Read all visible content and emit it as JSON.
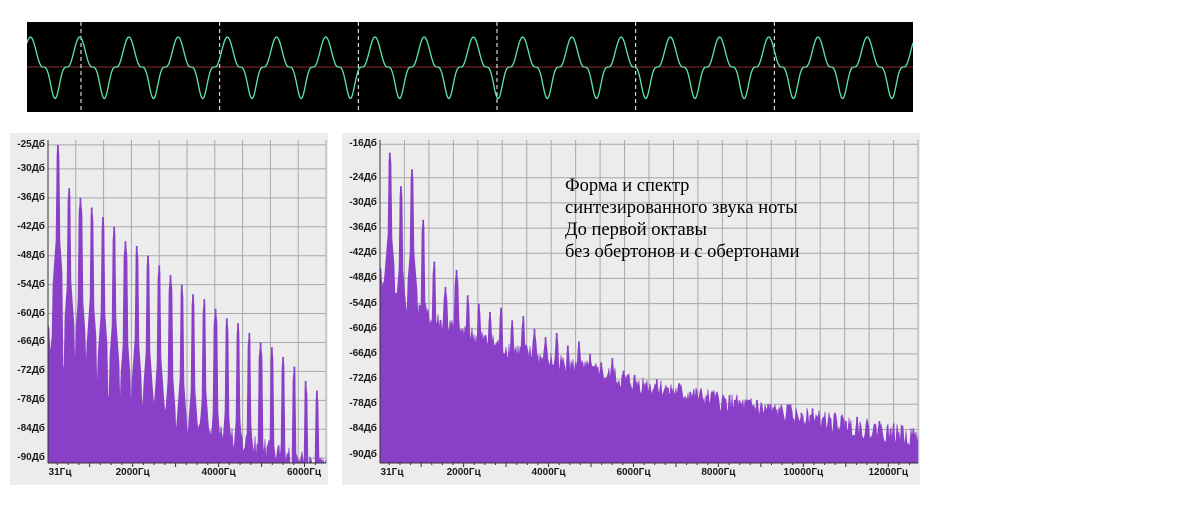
{
  "caption": {
    "lines": [
      "Форма и спектр",
      "синтезированного звука ноты",
      "До первой октавы",
      "без обертонов и с обертонами"
    ]
  },
  "colors": {
    "waveform": "#5ee6a8",
    "waveform_background": "#000000",
    "waveform_markers": "#ffffff",
    "waveform_center": "#8b2a2a",
    "spectrum_fill": "#8a3fc8",
    "plot_background": "#ececec",
    "grid": "#a8a8a8"
  },
  "chart_data": [
    {
      "type": "line",
      "title": "",
      "description_level": "waveform",
      "xlabel": "",
      "ylabel": "",
      "grid": false,
      "periods": 18,
      "marker_count": 6,
      "amplitude": [
        -1,
        1
      ]
    },
    {
      "type": "area",
      "title": "",
      "xlabel": "",
      "ylabel": "",
      "grid": true,
      "x_tick_labels": [
        "31Гц",
        "2000Гц",
        "4000Гц",
        "6000Гц"
      ],
      "x_tick_values": [
        31,
        2000,
        4000,
        6000
      ],
      "xlim": [
        31,
        6500
      ],
      "y_tick_labels": [
        "-25Дб",
        "-30Дб",
        "-36Дб",
        "-42Дб",
        "-48Дб",
        "-54Дб",
        "-60Дб",
        "-66Дб",
        "-72Дб",
        "-78Дб",
        "-84Дб",
        "-90Дб"
      ],
      "y_tick_values": [
        -25,
        -30,
        -36,
        -42,
        -48,
        -54,
        -60,
        -66,
        -72,
        -78,
        -84,
        -90
      ],
      "ylim": [
        -91,
        -24
      ],
      "fundamental_hz": 262,
      "series": [
        {
          "harmonic_peaks_db": [
            -25,
            -34,
            -36,
            -38,
            -40,
            -42,
            -45,
            -46,
            -48,
            -50,
            -52,
            -54,
            -56,
            -57,
            -59,
            -61,
            -62,
            -64,
            -66,
            -67,
            -69,
            -71,
            -74,
            -76,
            -78,
            -80,
            -83,
            -86,
            -88,
            -89
          ]
        }
      ]
    },
    {
      "type": "area",
      "title": "",
      "xlabel": "",
      "ylabel": "",
      "grid": true,
      "x_tick_labels": [
        "31Гц",
        "2000Гц",
        "4000Гц",
        "6000Гц",
        "8000Гц",
        "10000Гц",
        "12000Гц"
      ],
      "x_tick_values": [
        31,
        2000,
        4000,
        6000,
        8000,
        10000,
        12000
      ],
      "xlim": [
        31,
        12700
      ],
      "y_tick_labels": [
        "-16Дб",
        "-24Дб",
        "-30Дб",
        "-36Дб",
        "-42Дб",
        "-48Дб",
        "-54Дб",
        "-60Дб",
        "-66Дб",
        "-72Дб",
        "-78Дб",
        "-84Дб",
        "-90Дб"
      ],
      "y_tick_values": [
        -16,
        -24,
        -30,
        -36,
        -42,
        -48,
        -54,
        -60,
        -66,
        -72,
        -78,
        -84,
        -90
      ],
      "ylim": [
        -92,
        -15
      ],
      "fundamental_hz": 262,
      "series": [
        {
          "harmonic_peaks_db": [
            -18,
            -26,
            -22,
            -34,
            -44,
            -50,
            -46,
            -52,
            -54,
            -56,
            -55,
            -58,
            -57,
            -60,
            -62,
            -61,
            -64,
            -63,
            -66,
            -68,
            -67,
            -70,
            -71,
            -73,
            -72,
            -74,
            -73,
            -75,
            -76,
            -75,
            -76,
            -77,
            -78,
            -77,
            -78,
            -79,
            -78,
            -80,
            -79,
            -81,
            -80,
            -82,
            -81,
            -83,
            -82,
            -84,
            -83,
            -85,
            -84
          ]
        }
      ]
    }
  ]
}
